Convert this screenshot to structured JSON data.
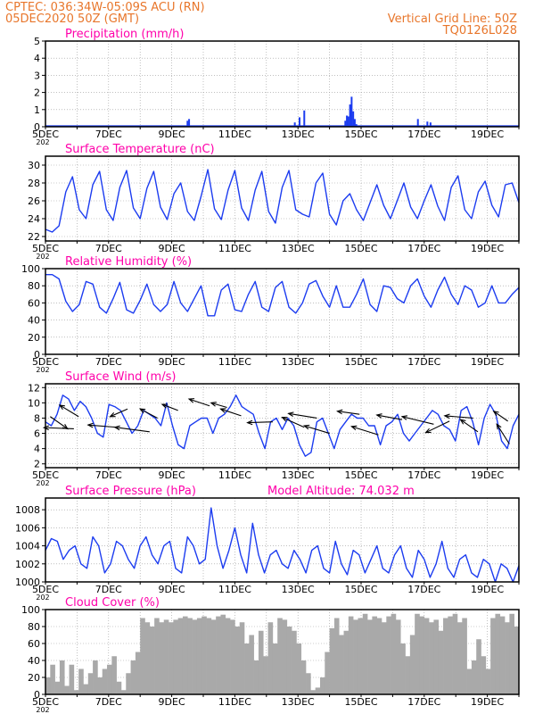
{
  "header": {
    "line1": "CPTEC:   036:34W-05:09S   ACU (RN)",
    "line2": "05DEC2020 50Z (GMT)",
    "grid_line": "Vertical Grid Line: 50Z",
    "code": "TQ0126L028"
  },
  "colors": {
    "header": "#e8762b",
    "title": "#ff00aa",
    "series": "#1c3cf0",
    "cloud": "#a9a9a9",
    "grid": "#999999"
  },
  "x_tick_labels": [
    "5DEC",
    "7DEC",
    "9DEC",
    "11DEC",
    "13DEC",
    "15DEC",
    "17DEC",
    "19DEC"
  ],
  "year_fragment": "202",
  "chart_data": [
    {
      "type": "bar",
      "title": "Precipitation (mm/h)",
      "ylim": [
        0,
        5
      ],
      "yticks": [
        "0",
        "1",
        "2",
        "3",
        "4",
        "5"
      ],
      "x_unit": "days since 5DEC",
      "xlim": [
        0,
        15
      ],
      "events": [
        {
          "x": 0.9,
          "y": 0.05
        },
        {
          "x": 4.5,
          "y": 0.35
        },
        {
          "x": 4.55,
          "y": 0.45
        },
        {
          "x": 7.9,
          "y": 0.25
        },
        {
          "x": 8.05,
          "y": 0.55
        },
        {
          "x": 8.2,
          "y": 0.95
        },
        {
          "x": 9.5,
          "y": 0.35
        },
        {
          "x": 9.55,
          "y": 0.65
        },
        {
          "x": 9.6,
          "y": 0.6
        },
        {
          "x": 9.65,
          "y": 1.3
        },
        {
          "x": 9.7,
          "y": 1.75
        },
        {
          "x": 9.75,
          "y": 0.9
        },
        {
          "x": 9.8,
          "y": 0.45
        },
        {
          "x": 9.85,
          "y": 0.15
        },
        {
          "x": 11.8,
          "y": 0.45
        },
        {
          "x": 12.1,
          "y": 0.3
        },
        {
          "x": 12.2,
          "y": 0.25
        }
      ]
    },
    {
      "type": "line",
      "title": "Surface Temperature (nC)",
      "ylim": [
        21.5,
        31
      ],
      "yticks": [
        "22",
        "24",
        "26",
        "28",
        "30"
      ],
      "series": [
        {
          "values": [
            22.8,
            22.5,
            23.2,
            27.0,
            28.7,
            25.0,
            24.0,
            27.8,
            29.3,
            25.0,
            23.8,
            27.5,
            29.4,
            25.2,
            24.0,
            27.4,
            29.3,
            25.3,
            23.9,
            26.8,
            28.0,
            24.8,
            23.8,
            26.5,
            29.5,
            25.1,
            23.9,
            27.2,
            29.4,
            25.2,
            23.8,
            27.2,
            29.3,
            24.8,
            23.5,
            27.5,
            29.4,
            25.0,
            24.5,
            24.2,
            28.0,
            29.1,
            24.5,
            23.3,
            26.0,
            26.8,
            25.0,
            23.8,
            25.8,
            27.8,
            25.5,
            24.0,
            26.0,
            28.0,
            25.3,
            24.0,
            26.0,
            27.8,
            25.4,
            23.8,
            27.5,
            28.8,
            25.0,
            24.0,
            27.0,
            28.2,
            25.5,
            24.2,
            27.8,
            28.0,
            25.8
          ]
        }
      ]
    },
    {
      "type": "line",
      "title": "Relative Humidity (%)",
      "ylim": [
        0,
        100
      ],
      "yticks": [
        "0",
        "20",
        "40",
        "60",
        "80",
        "100"
      ],
      "series": [
        {
          "values": [
            93,
            93,
            88,
            62,
            50,
            58,
            85,
            82,
            55,
            48,
            65,
            84,
            52,
            48,
            63,
            82,
            58,
            50,
            58,
            85,
            60,
            50,
            65,
            80,
            45,
            45,
            75,
            82,
            52,
            50,
            70,
            85,
            55,
            50,
            78,
            85,
            55,
            48,
            60,
            82,
            86,
            68,
            55,
            80,
            55,
            55,
            70,
            88,
            58,
            50,
            80,
            78,
            65,
            60,
            80,
            88,
            68,
            55,
            75,
            90,
            70,
            58,
            80,
            75,
            55,
            60,
            80,
            60,
            60,
            70,
            78
          ]
        }
      ]
    },
    {
      "type": "line",
      "title": "Surface Wind (m/s)",
      "ylim": [
        1.5,
        12.5
      ],
      "yticks": [
        "2",
        "4",
        "6",
        "8",
        "10",
        "12"
      ],
      "series": [
        {
          "values": [
            7.5,
            7.0,
            8.5,
            11.0,
            10.5,
            9.0,
            10.2,
            9.5,
            8.0,
            6.0,
            5.5,
            9.8,
            9.5,
            9.0,
            7.5,
            6.0,
            7.0,
            9.0,
            8.5,
            8.0,
            7.0,
            10.0,
            7.0,
            4.5,
            4.0,
            7.0,
            7.5,
            8.0,
            8.0,
            6.0,
            8.0,
            8.5,
            9.5,
            11.0,
            9.5,
            9.0,
            8.5,
            6.0,
            4.0,
            7.5,
            8.0,
            6.5,
            8.0,
            7.0,
            4.5,
            3.0,
            3.5,
            7.5,
            8.0,
            6.0,
            4.0,
            6.5,
            7.5,
            8.5,
            8.0,
            8.0,
            7.0,
            7.0,
            4.5,
            7.0,
            7.5,
            8.5,
            6.0,
            5.0,
            6.0,
            7.0,
            8.0,
            9.0,
            8.5,
            7.0,
            6.5,
            5.0,
            9.0,
            9.5,
            7.5,
            4.5,
            8.0,
            9.8,
            8.5,
            5.0,
            4.0,
            7.0,
            8.5
          ]
        }
      ],
      "arrows": [
        {
          "x": 0.15,
          "speed": 8.2,
          "dx": 0.55,
          "dy": -1.6
        },
        {
          "x": 0.9,
          "speed": 6.6,
          "dx": -0.95,
          "dy": 0.15
        },
        {
          "x": 1.05,
          "speed": 8.2,
          "dx": -0.6,
          "dy": 1.5
        },
        {
          "x": 2.25,
          "speed": 6.8,
          "dx": -0.9,
          "dy": 0.3
        },
        {
          "x": 2.6,
          "speed": 9.2,
          "dx": -0.55,
          "dy": -1.0
        },
        {
          "x": 3.3,
          "speed": 6.2,
          "dx": -1.1,
          "dy": 0.6
        },
        {
          "x": 3.55,
          "speed": 8.0,
          "dx": -0.55,
          "dy": 1.2
        },
        {
          "x": 4.2,
          "speed": 9.0,
          "dx": -0.5,
          "dy": 0.8
        },
        {
          "x": 5.2,
          "speed": 9.6,
          "dx": -0.65,
          "dy": 0.9
        },
        {
          "x": 5.75,
          "speed": 9.4,
          "dx": -0.5,
          "dy": 0.6
        },
        {
          "x": 6.2,
          "speed": 8.3,
          "dx": -0.65,
          "dy": 0.9
        },
        {
          "x": 7.2,
          "speed": 7.5,
          "dx": -0.8,
          "dy": -0.1
        },
        {
          "x": 8.2,
          "speed": 6.8,
          "dx": -0.7,
          "dy": 1.3
        },
        {
          "x": 8.6,
          "speed": 8.0,
          "dx": -0.9,
          "dy": 0.6
        },
        {
          "x": 9.0,
          "speed": 6.0,
          "dx": -0.8,
          "dy": 1.0
        },
        {
          "x": 9.95,
          "speed": 8.5,
          "dx": -0.7,
          "dy": 0.4
        },
        {
          "x": 10.55,
          "speed": 5.8,
          "dx": -0.85,
          "dy": 1.1
        },
        {
          "x": 11.3,
          "speed": 7.8,
          "dx": -0.8,
          "dy": 0.6
        },
        {
          "x": 12.3,
          "speed": 7.2,
          "dx": -1.0,
          "dy": 1.0
        },
        {
          "x": 12.8,
          "speed": 7.6,
          "dx": -0.75,
          "dy": -1.5
        },
        {
          "x": 13.55,
          "speed": 8.0,
          "dx": -0.9,
          "dy": 0.3
        },
        {
          "x": 13.7,
          "speed": 6.2,
          "dx": -0.55,
          "dy": 1.6
        },
        {
          "x": 14.65,
          "speed": 7.6,
          "dx": -0.45,
          "dy": 1.3
        },
        {
          "x": 14.7,
          "speed": 4.6,
          "dx": -0.4,
          "dy": 2.6
        }
      ]
    },
    {
      "type": "line",
      "title": "Surface Pressure (hPa)",
      "annotation": "Model Altitude: 74.032 m",
      "ylim": [
        1000,
        1009.3
      ],
      "yticks": [
        "1000",
        "1002",
        "1004",
        "1006",
        "1008"
      ],
      "series": [
        {
          "values": [
            1003.5,
            1004.8,
            1004.5,
            1002.5,
            1003.5,
            1004.0,
            1002.0,
            1001.5,
            1005.0,
            1004.0,
            1001.0,
            1002.0,
            1004.5,
            1004.0,
            1002.5,
            1001.5,
            1004.0,
            1005.0,
            1003.0,
            1002.0,
            1004.0,
            1004.5,
            1001.5,
            1001.0,
            1005.0,
            1004.0,
            1002.0,
            1002.5,
            1008.2,
            1004.0,
            1001.5,
            1003.5,
            1006.0,
            1003.0,
            1001.0,
            1006.5,
            1003.0,
            1001.0,
            1003.0,
            1003.5,
            1002.0,
            1001.5,
            1003.5,
            1002.5,
            1001.0,
            1003.5,
            1004.0,
            1001.5,
            1001.0,
            1004.5,
            1002.0,
            1000.8,
            1003.5,
            1003.0,
            1001.0,
            1002.5,
            1004.0,
            1001.5,
            1001.0,
            1003.0,
            1004.0,
            1001.5,
            1000.5,
            1003.5,
            1002.5,
            1000.5,
            1002.0,
            1004.5,
            1001.5,
            1000.5,
            1002.5,
            1003.0,
            1001.0,
            1000.5,
            1002.5,
            1002.0,
            1000.0,
            1002.0,
            1001.5,
            1000.0,
            1001.8
          ]
        }
      ]
    },
    {
      "type": "area",
      "title": "Cloud Cover (%)",
      "ylim": [
        0,
        100
      ],
      "yticks": [
        "0",
        "20",
        "40",
        "60",
        "80",
        "100"
      ],
      "series": [
        {
          "values": [
            20,
            35,
            15,
            40,
            10,
            35,
            5,
            30,
            12,
            25,
            40,
            20,
            30,
            35,
            45,
            15,
            5,
            25,
            40,
            50,
            90,
            85,
            80,
            90,
            85,
            88,
            85,
            88,
            90,
            92,
            90,
            88,
            90,
            92,
            90,
            88,
            92,
            94,
            90,
            88,
            80,
            85,
            60,
            70,
            40,
            75,
            45,
            85,
            60,
            90,
            88,
            80,
            75,
            60,
            40,
            25,
            5,
            8,
            20,
            50,
            78,
            90,
            70,
            75,
            92,
            88,
            90,
            95,
            88,
            92,
            90,
            85,
            92,
            95,
            88,
            60,
            45,
            70,
            95,
            92,
            90,
            85,
            88,
            75,
            90,
            92,
            95,
            85,
            90,
            30,
            40,
            65,
            45,
            30,
            90,
            95,
            92,
            85,
            95,
            80
          ]
        }
      ]
    }
  ]
}
